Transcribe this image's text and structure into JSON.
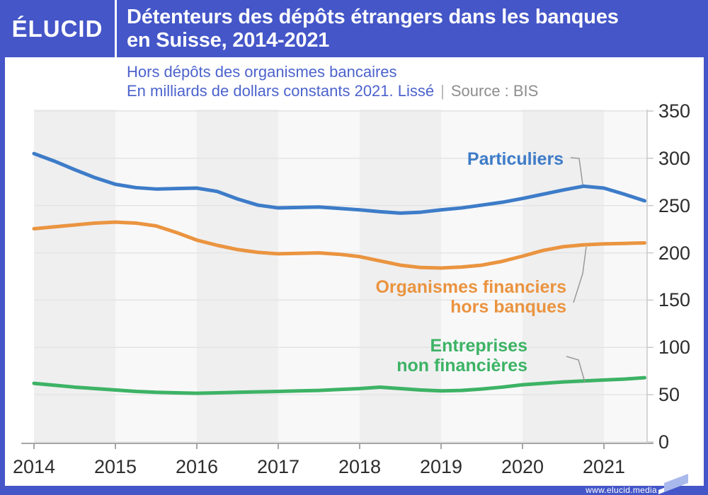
{
  "header": {
    "logo": "ÉLUCID",
    "title_line1": "Détenteurs des dépôts étrangers dans les banques",
    "title_line2": "en Suisse, 2014-2021"
  },
  "subtitle": {
    "line1": "Hors dépôts des organismes bancaires",
    "line2": "En milliards de dollars constants 2021. Lissé",
    "separator": "|",
    "source": "Source : BIS"
  },
  "footer": {
    "url": "www.elucid.media"
  },
  "colors": {
    "brand_blue": "#4456c8",
    "subtitle_blue": "#4c63cd",
    "source_gray": "#8d8d8d",
    "band_dark": "#efeff0",
    "band_light": "#f8f8f9",
    "gridline": "#e4e4e5",
    "axis": "#a6a6a6",
    "tick_label": "#2d2d2d",
    "callout": "#999999",
    "line_blue": "#3d7cc8",
    "line_orange": "#ea9440",
    "line_green": "#3db365"
  },
  "chart_data": {
    "type": "line",
    "title": "Détenteurs des dépôts étrangers dans les banques en Suisse, 2014-2021",
    "subtitle": "Hors dépôts des organismes bancaires",
    "ylabel": "En milliards de dollars constants 2021. Lissé",
    "source": "BIS",
    "grid": "horizontal",
    "legend_position": "inline-annotations",
    "xlim": [
      2014,
      2021.53
    ],
    "ylim": [
      0,
      350
    ],
    "x_ticks": [
      2014,
      2015,
      2016,
      2017,
      2018,
      2019,
      2020,
      2021
    ],
    "y_ticks": [
      0,
      50,
      100,
      150,
      200,
      250,
      300,
      350
    ],
    "x": [
      2014.0,
      2014.25,
      2014.5,
      2014.75,
      2015.0,
      2015.25,
      2015.5,
      2015.75,
      2016.0,
      2016.25,
      2016.5,
      2016.75,
      2017.0,
      2017.25,
      2017.5,
      2017.75,
      2018.0,
      2018.25,
      2018.5,
      2018.75,
      2019.0,
      2019.25,
      2019.5,
      2019.75,
      2020.0,
      2020.25,
      2020.5,
      2020.75,
      2021.0,
      2021.25,
      2021.5
    ],
    "series": [
      {
        "id": "particuliers",
        "name": "Particuliers",
        "label": "Particuliers",
        "color": "#3d7cc8",
        "values": [
          305,
          297,
          288,
          279.5,
          272.5,
          269,
          267.5,
          268,
          268.5,
          265,
          257,
          250.5,
          247.5,
          248,
          248.5,
          247,
          245.5,
          243.5,
          242,
          243,
          245.5,
          247.5,
          250.5,
          253.5,
          257.5,
          262,
          266.5,
          270.5,
          268.5,
          262,
          255
        ]
      },
      {
        "id": "organismes-financiers",
        "name": "Organismes financiers hors banques",
        "label": "Organismes financiers\nhors banques",
        "color": "#ea9440",
        "values": [
          225.5,
          227.5,
          229.5,
          231.5,
          232.5,
          231.5,
          228.5,
          221.5,
          213.5,
          208,
          203.5,
          200.5,
          199,
          199.5,
          200,
          198.5,
          196,
          191.5,
          187,
          184.5,
          184,
          185,
          187,
          191,
          196.5,
          202.5,
          206.5,
          208.5,
          209.5,
          210,
          210.5
        ]
      },
      {
        "id": "entreprises",
        "name": "Entreprises non financières",
        "label": "Entreprises\nnon financières",
        "color": "#3db365",
        "values": [
          62,
          60,
          58,
          56.5,
          55,
          53.5,
          52.5,
          52,
          51.5,
          52,
          52.5,
          53,
          53.5,
          54,
          54.5,
          55.5,
          56.5,
          58,
          56.5,
          55,
          54,
          54.5,
          56,
          58,
          60.5,
          62,
          63.5,
          64.5,
          65.5,
          66.5,
          68
        ]
      }
    ]
  }
}
